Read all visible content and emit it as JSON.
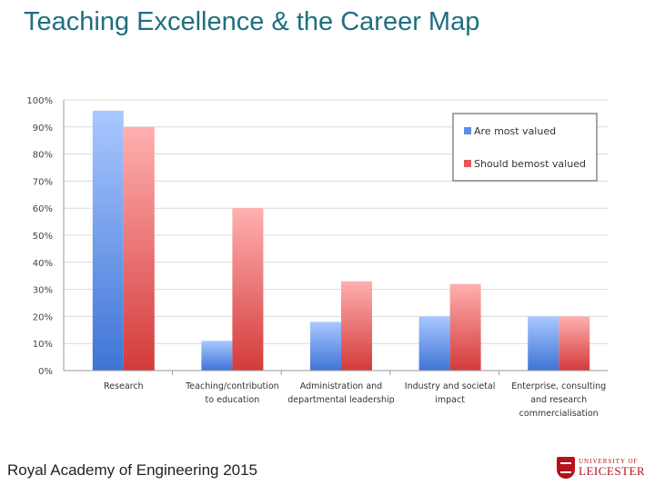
{
  "slide": {
    "title": "Teaching Excellence & the Career Map",
    "footer": "Royal Academy of Engineering 2015",
    "logo": {
      "top": "UNIVERSITY OF",
      "main": "LEICESTER"
    }
  },
  "colors": {
    "series_blue": "#5b8ee6",
    "series_red": "#e05a5a",
    "title": "#1f6f7f"
  },
  "chart_data": {
    "type": "bar",
    "title": "",
    "xlabel": "",
    "ylabel": "",
    "ylim": [
      0,
      100
    ],
    "yticks": [
      "0%",
      "10%",
      "20%",
      "30%",
      "40%",
      "50%",
      "60%",
      "70%",
      "80%",
      "90%",
      "100%"
    ],
    "grid": true,
    "legend": "top-right",
    "categories": [
      [
        "Research"
      ],
      [
        "Teaching/contribution",
        "to education"
      ],
      [
        "Administration and",
        "departmental leadership"
      ],
      [
        "Industry and societal",
        "impact"
      ],
      [
        "Enterprise, consulting",
        "and research",
        "commercialisation"
      ]
    ],
    "series": [
      {
        "name": "Are most valued",
        "values": [
          96,
          11,
          18,
          20,
          20
        ]
      },
      {
        "name": "Should bemost valued",
        "values": [
          90,
          60,
          33,
          32,
          20
        ]
      }
    ]
  }
}
